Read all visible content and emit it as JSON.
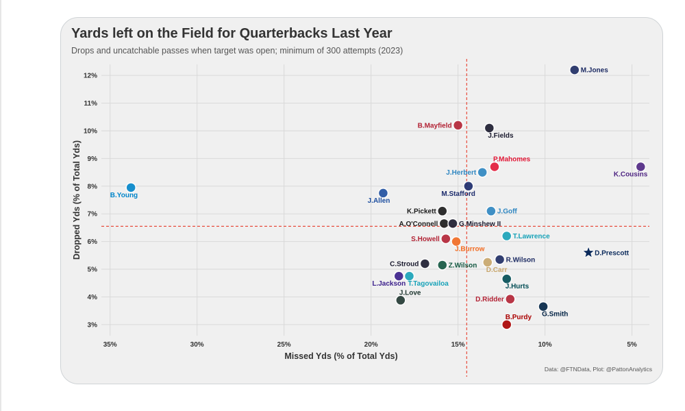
{
  "chart_data": {
    "type": "scatter",
    "title": "Yards left on the Field for Quarterbacks Last Year",
    "subtitle": "Drops and uncatchable passes when target was open; minimum of 300 attempts (2023)",
    "xlabel": "Missed Yds (% of Total Yds)",
    "ylabel": "Dropped Yds (% of Total Yds)",
    "x_reversed": true,
    "xlim": [
      35.5,
      4.0
    ],
    "ylim": [
      2.6,
      12.4
    ],
    "x_ticks": [
      35,
      30,
      25,
      20,
      15,
      10,
      5
    ],
    "x_tick_labels": [
      "35%",
      "30%",
      "25%",
      "20%",
      "15%",
      "10%",
      "5%"
    ],
    "y_ticks": [
      3,
      4,
      5,
      6,
      7,
      8,
      9,
      10,
      11,
      12
    ],
    "y_tick_labels": [
      "3%",
      "4%",
      "5%",
      "6%",
      "7%",
      "8%",
      "9%",
      "10%",
      "11%",
      "12%"
    ],
    "reference_lines": {
      "x": 14.5,
      "y": 6.55,
      "color": "#e74c3c"
    },
    "grid": true,
    "credit": "Data: @FTNData, Plot: @PattonAnalytics",
    "points": [
      {
        "name": "M.Jones",
        "x": 8.3,
        "y": 12.2,
        "color": "#1d2b63",
        "label_pos": "right"
      },
      {
        "name": "B.Mayfield",
        "x": 15.0,
        "y": 10.2,
        "color": "#b22234",
        "label_pos": "left"
      },
      {
        "name": "J.Fields",
        "x": 13.2,
        "y": 10.1,
        "color": "#1a1a2e",
        "label_pos": "below-right"
      },
      {
        "name": "P.Mahomes",
        "x": 12.9,
        "y": 8.7,
        "color": "#e31837",
        "label_pos": "above-right"
      },
      {
        "name": "K.Cousins",
        "x": 4.5,
        "y": 8.7,
        "color": "#4f2683",
        "label_pos": "below-left"
      },
      {
        "name": "J.Herbert",
        "x": 13.6,
        "y": 8.5,
        "color": "#2e86c1",
        "label_pos": "left"
      },
      {
        "name": "M.Stafford",
        "x": 14.4,
        "y": 8.0,
        "color": "#1b2a6b",
        "label_pos": "below-left"
      },
      {
        "name": "B.Young",
        "x": 33.8,
        "y": 7.95,
        "color": "#0085ca",
        "label_pos": "below-left"
      },
      {
        "name": "J.Allen",
        "x": 19.3,
        "y": 7.75,
        "color": "#1e4fa0",
        "label_pos": "below-left"
      },
      {
        "name": "J.Goff",
        "x": 13.1,
        "y": 7.1,
        "color": "#2e86c1",
        "label_pos": "right"
      },
      {
        "name": "K.Pickett",
        "x": 15.9,
        "y": 7.1,
        "color": "#1a1a1a",
        "label_pos": "left"
      },
      {
        "name": "A.O'Connell",
        "x": 15.8,
        "y": 6.65,
        "color": "#1a1a1a",
        "label_pos": "left"
      },
      {
        "name": "G.Minshew II",
        "x": 15.3,
        "y": 6.65,
        "color": "#1a1a2e",
        "label_pos": "right"
      },
      {
        "name": "T.Lawrence",
        "x": 12.2,
        "y": 6.2,
        "color": "#17a2b8",
        "label_pos": "right"
      },
      {
        "name": "S.Howell",
        "x": 15.7,
        "y": 6.1,
        "color": "#b22234",
        "label_pos": "left"
      },
      {
        "name": "J.Burrow",
        "x": 15.1,
        "y": 6.0,
        "color": "#f26b21",
        "label_pos": "below-right"
      },
      {
        "name": "D.Prescott",
        "x": 7.5,
        "y": 5.6,
        "color": "#0b2a5b",
        "label_pos": "right"
      },
      {
        "name": "R.Wilson",
        "x": 12.6,
        "y": 5.35,
        "color": "#1d2b63",
        "label_pos": "right"
      },
      {
        "name": "C.Stroud",
        "x": 16.9,
        "y": 5.2,
        "color": "#1a1a2e",
        "label_pos": "left"
      },
      {
        "name": "Z.Wilson",
        "x": 15.9,
        "y": 5.15,
        "color": "#125740",
        "label_pos": "right"
      },
      {
        "name": "D.Carr",
        "x": 13.3,
        "y": 5.25,
        "color": "#c8a66b",
        "label_pos": "below-right"
      },
      {
        "name": "T.Tagovailoa",
        "x": 17.8,
        "y": 4.75,
        "color": "#17a2b8",
        "label_pos": "below-right"
      },
      {
        "name": "L.Jackson",
        "x": 18.4,
        "y": 4.75,
        "color": "#3a1e8a",
        "label_pos": "below-left"
      },
      {
        "name": "J.Hurts",
        "x": 12.2,
        "y": 4.65,
        "color": "#004c54",
        "label_pos": "below-right"
      },
      {
        "name": "J.Love",
        "x": 18.3,
        "y": 3.88,
        "color": "#203731",
        "label_pos": "above-right"
      },
      {
        "name": "D.Ridder",
        "x": 12.0,
        "y": 3.92,
        "color": "#b22234",
        "label_pos": "left"
      },
      {
        "name": "G.Smith",
        "x": 10.1,
        "y": 3.65,
        "color": "#002244",
        "label_pos": "below-right"
      },
      {
        "name": "B.Purdy",
        "x": 12.2,
        "y": 3.0,
        "color": "#aa0000",
        "label_pos": "above-right"
      }
    ]
  }
}
